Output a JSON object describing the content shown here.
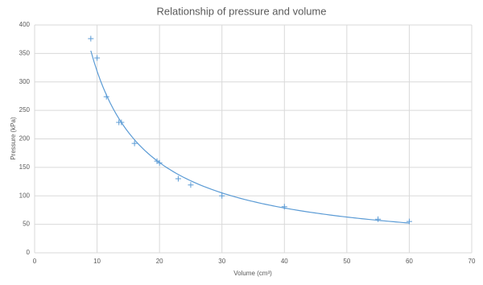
{
  "chart_data": {
    "type": "scatter",
    "title": "Relationship of pressure and volume",
    "xlabel": "Volume (cm³)",
    "ylabel": "Pressure (kPa)",
    "series": [
      {
        "color": "#5b9bd5",
        "x": [
          9,
          10,
          11.5,
          13.5,
          13.9,
          16,
          19.6,
          20,
          23,
          25,
          30,
          40,
          55,
          60
        ],
        "values": [
          376,
          342,
          274,
          229,
          229,
          192,
          161,
          158,
          130,
          119,
          100,
          81,
          59,
          55
        ]
      }
    ],
    "trendline": "power",
    "xlim": [
      0,
      70
    ],
    "xticks": [
      0,
      10,
      20,
      30,
      40,
      50,
      60,
      70
    ],
    "ylim": [
      0,
      400
    ],
    "yticks": [
      0,
      50,
      100,
      150,
      200,
      250,
      300,
      350,
      400
    ],
    "grid": true
  }
}
